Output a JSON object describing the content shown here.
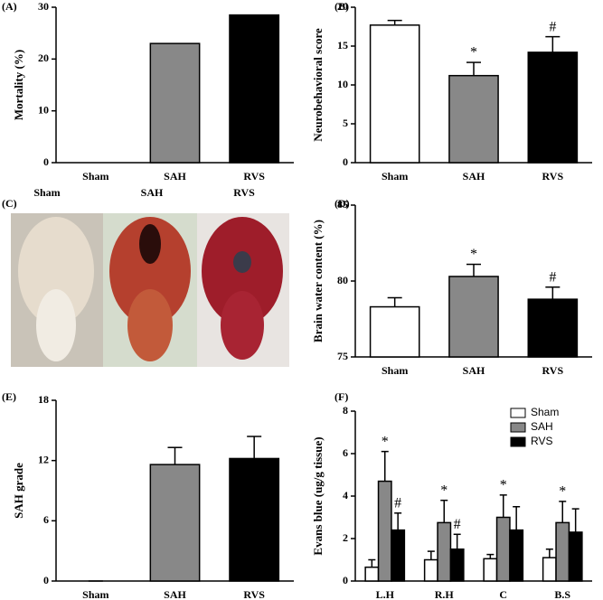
{
  "chart_data": [
    {
      "type": "bar",
      "panel_label": "(A)",
      "ylabel": "Mortality (%)",
      "categories": [
        "Sham",
        "SAH",
        "RVS"
      ],
      "values": [
        0,
        23,
        28.5
      ],
      "colors": [
        "#ffffff",
        "#888888",
        "#000000"
      ],
      "ylim": [
        0,
        30
      ],
      "yticks": [
        0,
        10,
        20,
        30
      ]
    },
    {
      "type": "bar",
      "panel_label": "(B)",
      "ylabel": "Neurobehavioral score",
      "categories": [
        "Sham",
        "SAH",
        "RVS"
      ],
      "values": [
        17.7,
        11.2,
        14.2
      ],
      "errors": [
        0.6,
        1.7,
        2.0
      ],
      "annotations": [
        null,
        "*",
        "#"
      ],
      "colors": [
        "#ffffff",
        "#888888",
        "#000000"
      ],
      "ylim": [
        0,
        20
      ],
      "yticks": [
        0,
        5,
        10,
        15,
        20
      ]
    },
    {
      "type": "bar",
      "panel_label": "(D)",
      "ylabel": "Brain water content (%)",
      "categories": [
        "Sham",
        "SAH",
        "RVS"
      ],
      "values": [
        78.3,
        80.3,
        78.8
      ],
      "errors": [
        0.6,
        0.8,
        0.8
      ],
      "annotations": [
        null,
        "*",
        "#"
      ],
      "colors": [
        "#ffffff",
        "#888888",
        "#000000"
      ],
      "ylim": [
        75,
        85
      ],
      "yticks": [
        75,
        80,
        85
      ]
    },
    {
      "type": "bar",
      "panel_label": "(E)",
      "ylabel": "SAH grade",
      "categories": [
        "Sham",
        "SAH",
        "RVS"
      ],
      "values": [
        0,
        11.6,
        12.2
      ],
      "errors": [
        0,
        1.7,
        2.2
      ],
      "colors": [
        "#ffffff",
        "#888888",
        "#000000"
      ],
      "ylim": [
        0,
        18
      ],
      "yticks": [
        0,
        6,
        12,
        18
      ]
    },
    {
      "type": "grouped_bar",
      "panel_label": "(F)",
      "ylabel": "Evans blue (ug/g tissue)",
      "categories": [
        "L.H",
        "R.H",
        "C",
        "B.S"
      ],
      "ylim": [
        0,
        8
      ],
      "yticks": [
        0,
        2,
        4,
        6,
        8
      ],
      "legend": "upper-right",
      "series": [
        {
          "name": "Sham",
          "color": "#ffffff",
          "values": [
            0.65,
            1.0,
            1.05,
            1.1
          ],
          "errors": [
            0.35,
            0.4,
            0.2,
            0.4
          ]
        },
        {
          "name": "SAH",
          "color": "#888888",
          "values": [
            4.7,
            2.75,
            3.0,
            2.75
          ],
          "errors": [
            1.4,
            1.05,
            1.05,
            1.0
          ],
          "annotations": [
            "*",
            "*",
            "*",
            "*"
          ]
        },
        {
          "name": "RVS",
          "color": "#000000",
          "values": [
            2.4,
            1.5,
            2.4,
            2.3
          ],
          "errors": [
            0.8,
            0.7,
            1.1,
            1.1
          ],
          "annotations": [
            "#",
            "#",
            null,
            null
          ]
        }
      ]
    }
  ],
  "photo_panel": {
    "panel_label": "(C)",
    "captions": [
      "Sham",
      "SAH",
      "RVS"
    ]
  }
}
